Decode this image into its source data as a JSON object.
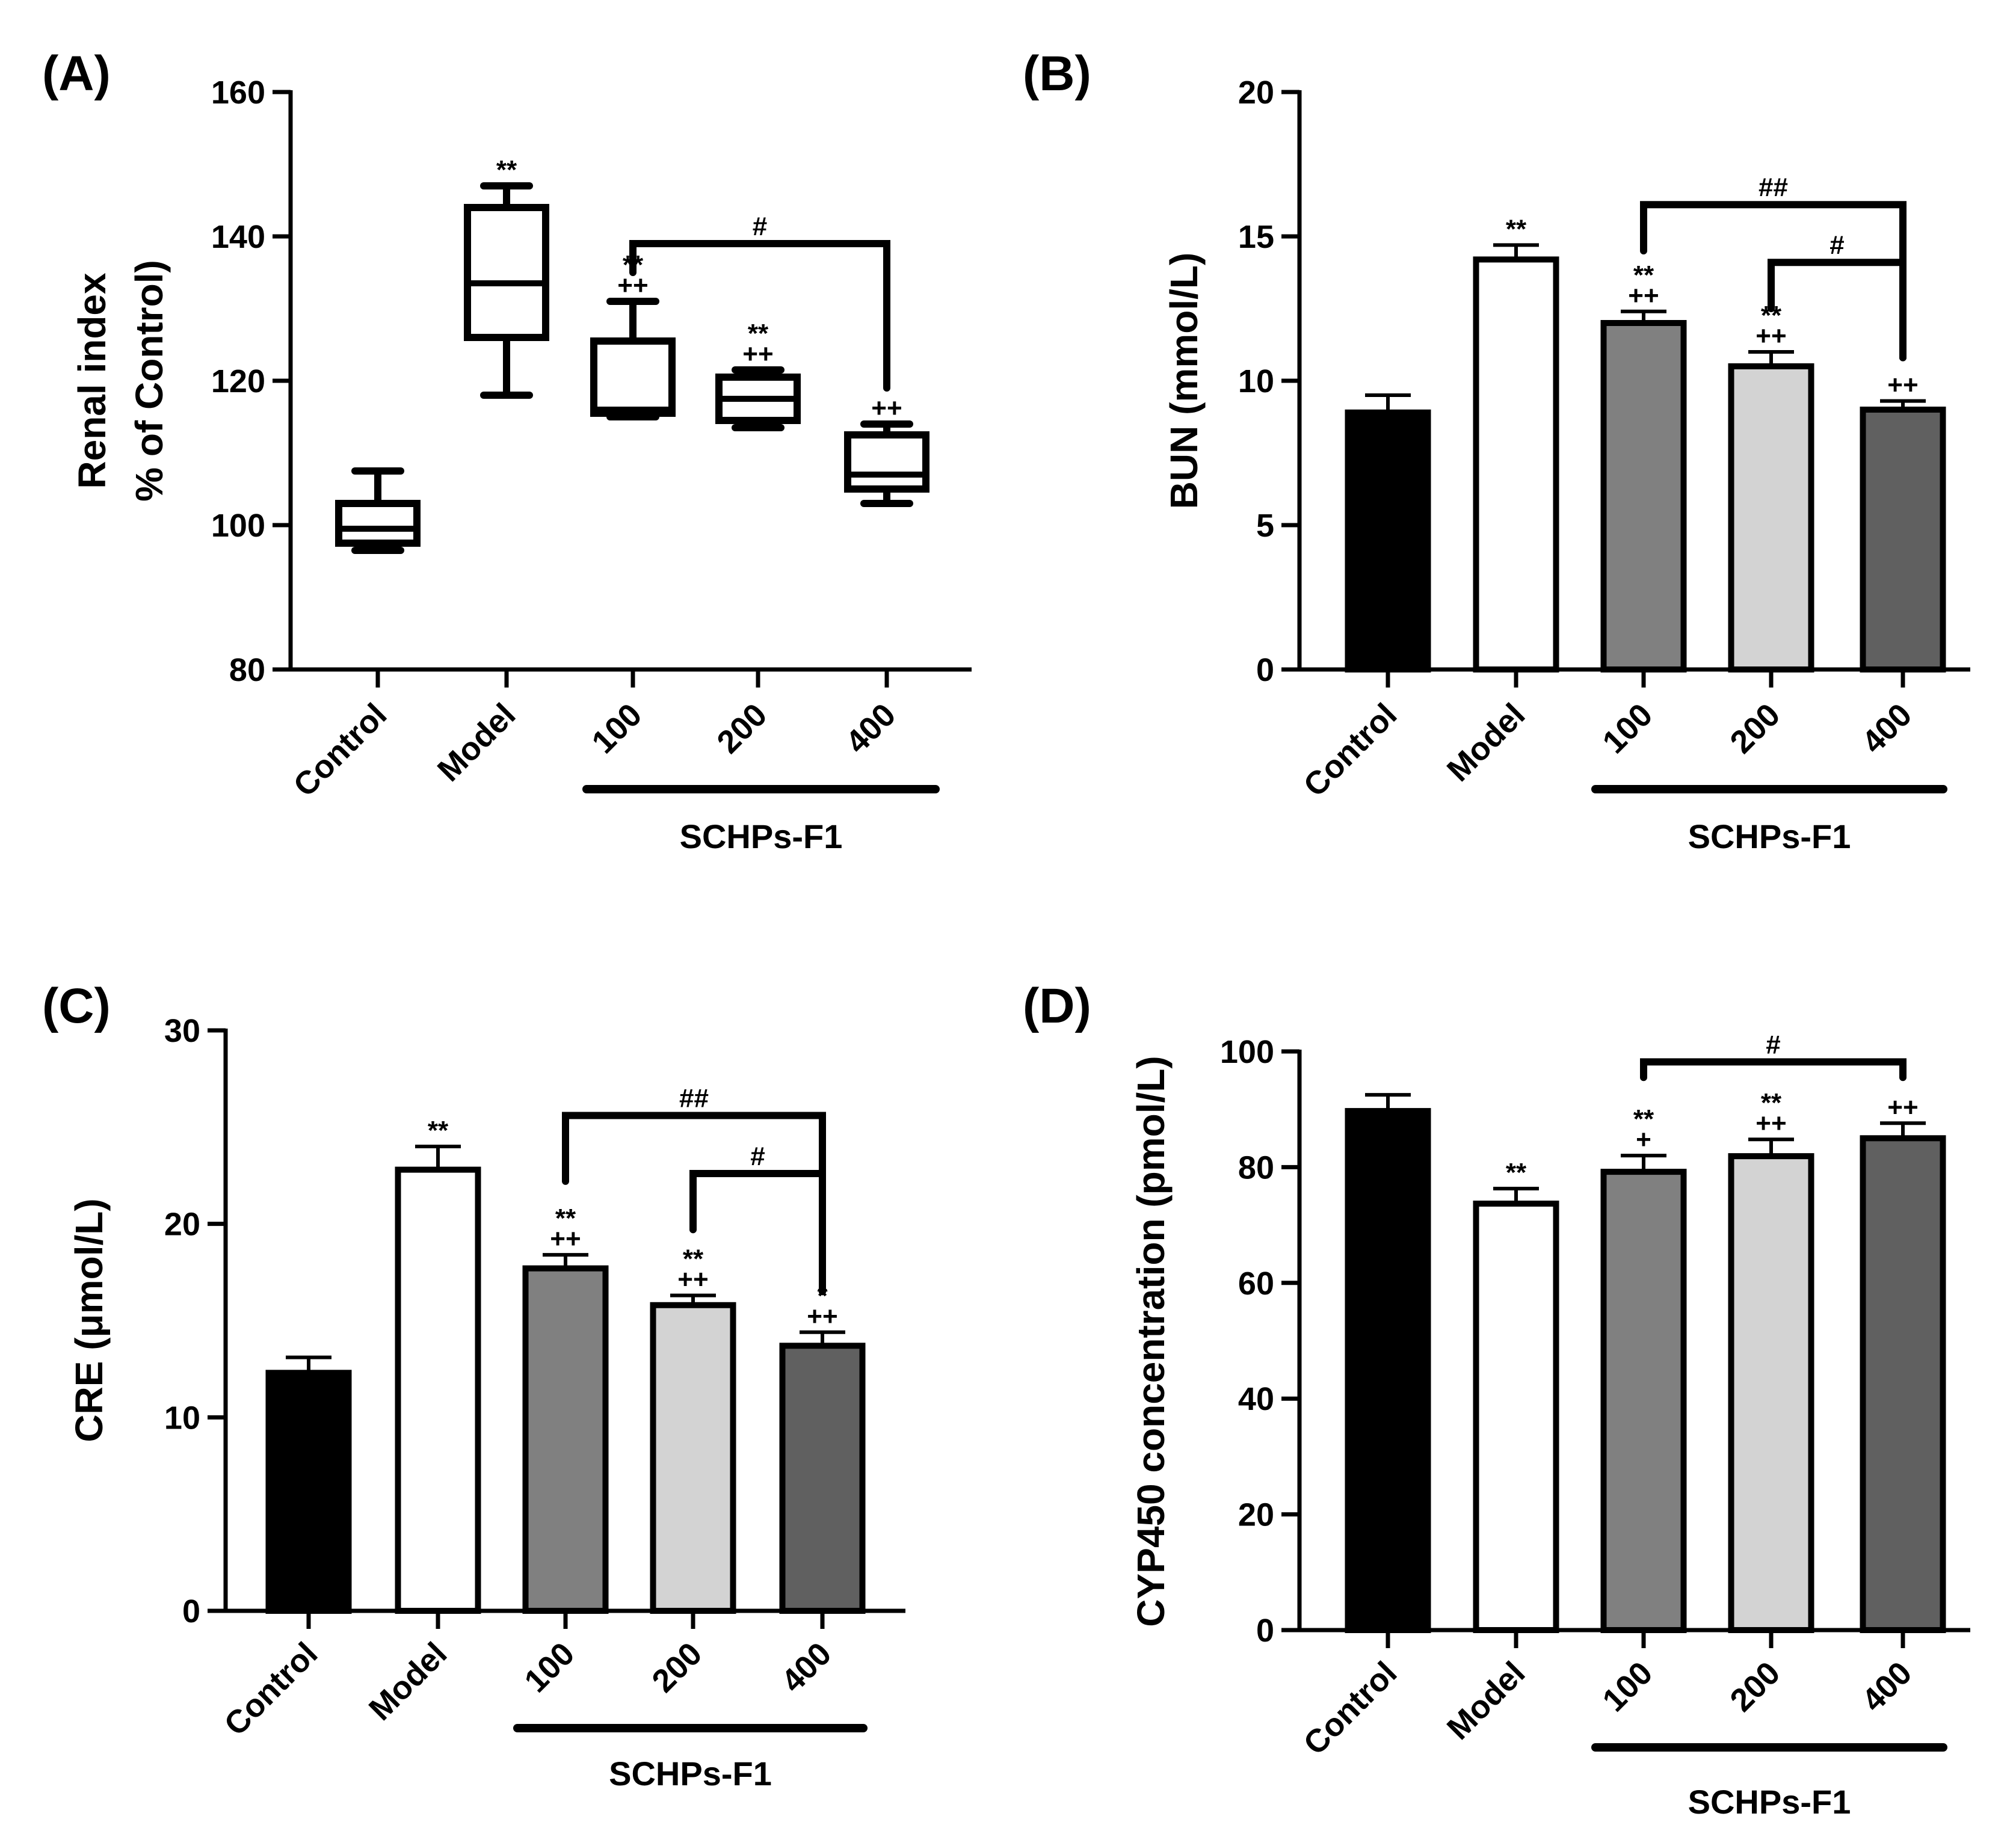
{
  "colors": {
    "Control": "#000000",
    "Model": "#ffffff",
    "100": "#808080",
    "200": "#d3d3d3",
    "400": "#606060",
    "stroke": "#000000"
  },
  "chart_data": [
    {
      "panel": "(A)",
      "type": "box",
      "categories": [
        "Control",
        "Model",
        "100",
        "200",
        "400"
      ],
      "group_label": "SCHPs-F1",
      "group_categories": [
        "100",
        "200",
        "400"
      ],
      "ylabel_lines": [
        "Renal index",
        "% of Control)"
      ],
      "ylim": [
        80,
        160
      ],
      "yticks": [
        80,
        100,
        120,
        140,
        160
      ],
      "boxes": [
        {
          "category": "Control",
          "min": 96.5,
          "q1": 97.5,
          "median": 99.5,
          "q3": 103,
          "max": 107.5
        },
        {
          "category": "Model",
          "min": 118,
          "q1": 126,
          "median": 133.5,
          "q3": 144,
          "max": 147
        },
        {
          "category": "100",
          "min": 115,
          "q1": 115.5,
          "median": 116,
          "q3": 125.5,
          "max": 131
        },
        {
          "category": "200",
          "min": 113.5,
          "q1": 114.5,
          "median": 117.5,
          "q3": 120.5,
          "max": 121.5
        },
        {
          "category": "400",
          "min": 103,
          "q1": 105,
          "median": 107,
          "q3": 112.5,
          "max": 114
        }
      ],
      "significance": [
        {
          "category": "Model",
          "labels": [
            "**"
          ]
        },
        {
          "category": "100",
          "labels": [
            "**",
            "++"
          ]
        },
        {
          "category": "200",
          "labels": [
            "**",
            "++"
          ]
        },
        {
          "category": "400",
          "labels": [
            "++"
          ]
        }
      ],
      "comparisons": [
        {
          "from": "100",
          "to": "400",
          "label": "#",
          "y": 139,
          "from_y": 135,
          "to_y": 119
        }
      ]
    },
    {
      "panel": "(B)",
      "type": "bar",
      "categories": [
        "Control",
        "Model",
        "100",
        "200",
        "400"
      ],
      "group_label": "SCHPs-F1",
      "group_categories": [
        "100",
        "200",
        "400"
      ],
      "ylabel_lines": [
        "BUN (mmol/L)"
      ],
      "ylim": [
        0,
        20
      ],
      "yticks": [
        0,
        5,
        10,
        15,
        20
      ],
      "values": [
        8.9,
        14.2,
        12.0,
        10.5,
        9.0
      ],
      "errors": [
        0.6,
        0.5,
        0.4,
        0.5,
        0.3
      ],
      "significance": [
        {
          "category": "Model",
          "labels": [
            "**"
          ]
        },
        {
          "category": "100",
          "labels": [
            "**",
            "++"
          ]
        },
        {
          "category": "200",
          "labels": [
            "**",
            "++"
          ]
        },
        {
          "category": "400",
          "labels": [
            "++"
          ]
        }
      ],
      "comparisons": [
        {
          "from": "100",
          "to": "400",
          "label": "##",
          "y": 16.1,
          "from_y": 14.5,
          "to_y": 10.8
        },
        {
          "from": "200",
          "to": "400",
          "label": "#",
          "y": 14.1,
          "from_y": 12.5,
          "to_y": 10.8
        }
      ]
    },
    {
      "panel": "(C)",
      "type": "bar",
      "categories": [
        "Control",
        "Model",
        "100",
        "200",
        "400"
      ],
      "group_label": "SCHPs-F1",
      "group_categories": [
        "100",
        "200",
        "400"
      ],
      "ylabel_lines": [
        "CRE (μmol/L)"
      ],
      "ylim": [
        0,
        30
      ],
      "yticks": [
        0,
        10,
        20,
        30
      ],
      "values": [
        12.3,
        22.8,
        17.7,
        15.8,
        13.7
      ],
      "errors": [
        0.8,
        1.2,
        0.7,
        0.5,
        0.7
      ],
      "significance": [
        {
          "category": "Model",
          "labels": [
            "**"
          ]
        },
        {
          "category": "100",
          "labels": [
            "**",
            "++"
          ]
        },
        {
          "category": "200",
          "labels": [
            "**",
            "++"
          ]
        },
        {
          "category": "400",
          "labels": [
            "*",
            "++"
          ]
        }
      ],
      "comparisons": [
        {
          "from": "100",
          "to": "400",
          "label": "##",
          "y": 25.6,
          "from_y": 22.2,
          "to_y": 16.5
        },
        {
          "from": "200",
          "to": "400",
          "label": "#",
          "y": 22.6,
          "from_y": 19.7,
          "to_y": 16.5
        }
      ]
    },
    {
      "panel": "(D)",
      "type": "bar",
      "categories": [
        "Control",
        "Model",
        "100",
        "200",
        "400"
      ],
      "group_label": "SCHPs-F1",
      "group_categories": [
        "100",
        "200",
        "400"
      ],
      "ylabel_lines": [
        "CYP450 concentration (pmol/L)"
      ],
      "ylim": [
        0,
        100
      ],
      "yticks": [
        0,
        20,
        40,
        60,
        80,
        100
      ],
      "values": [
        89.7,
        73.7,
        79.2,
        81.9,
        85.0
      ],
      "errors": [
        2.8,
        2.6,
        2.8,
        2.9,
        2.6
      ],
      "significance": [
        {
          "category": "Model",
          "labels": [
            "**"
          ]
        },
        {
          "category": "100",
          "labels": [
            "**",
            "+"
          ]
        },
        {
          "category": "200",
          "labels": [
            "**",
            "++"
          ]
        },
        {
          "category": "400",
          "labels": [
            "++"
          ]
        }
      ],
      "comparisons": [
        {
          "from": "100",
          "to": "400",
          "label": "#",
          "y": 98.2,
          "from_y": 95.5,
          "to_y": 95.5
        }
      ]
    }
  ]
}
